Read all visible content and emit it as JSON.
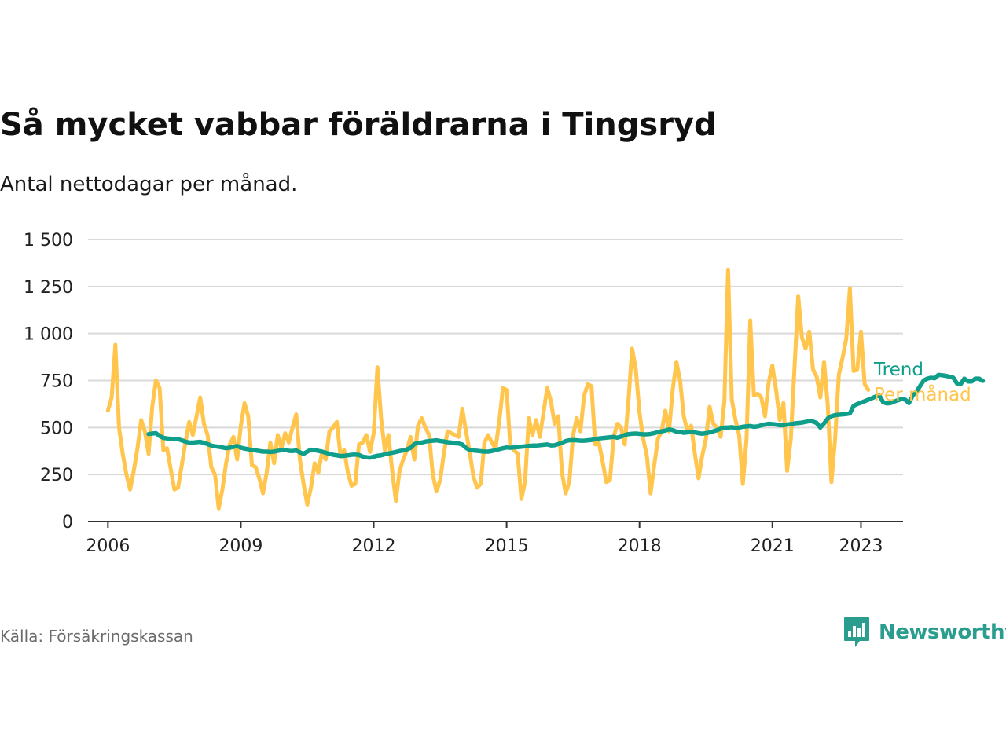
{
  "title": "Så mycket vabbar föräldrarna i Tingsryd",
  "subtitle": "Antal nettodagar per månad.",
  "source": "Källa: Försäkringskassan",
  "brand": {
    "name": "Newsworthy",
    "icon": "newsworthy-logo-icon",
    "color": "#2a9d8f"
  },
  "colors": {
    "per_month": "#ffc54d",
    "trend": "#0f9e8a",
    "grid": "#d9d9d9",
    "axis": "#333333"
  },
  "chart_data": {
    "type": "line",
    "title": "Så mycket vabbar föräldrarna i Tingsryd",
    "subtitle": "Antal nettodagar per månad.",
    "xlabel": "",
    "ylabel": "",
    "xlim": [
      2005.55,
      2023.95
    ],
    "ylim": [
      0,
      1500
    ],
    "x_ticks": [
      2006,
      2009,
      2012,
      2015,
      2018,
      2021,
      2023
    ],
    "x_tick_labels": [
      "2006",
      "2009",
      "2012",
      "2015",
      "2018",
      "2021",
      "2023"
    ],
    "y_ticks": [
      0,
      250,
      500,
      750,
      1000,
      1250,
      1500
    ],
    "y_tick_labels": [
      "0",
      "250",
      "500",
      "750",
      "1 000",
      "1 250",
      "1 500"
    ],
    "grid": true,
    "legend": "inline-right",
    "series": [
      {
        "name": "Per månad",
        "start": "2006-01",
        "values": [
          590,
          660,
          940,
          500,
          360,
          250,
          170,
          270,
          390,
          540,
          480,
          360,
          610,
          750,
          710,
          380,
          390,
          280,
          170,
          180,
          300,
          420,
          530,
          460,
          560,
          660,
          520,
          460,
          290,
          250,
          70,
          170,
          310,
          410,
          450,
          330,
          510,
          630,
          560,
          300,
          290,
          230,
          150,
          260,
          420,
          310,
          460,
          390,
          470,
          420,
          500,
          570,
          330,
          200,
          90,
          180,
          310,
          260,
          370,
          330,
          480,
          500,
          530,
          350,
          380,
          260,
          190,
          200,
          410,
          420,
          460,
          370,
          470,
          820,
          550,
          380,
          460,
          270,
          110,
          270,
          330,
          380,
          450,
          330,
          510,
          550,
          500,
          460,
          250,
          160,
          220,
          360,
          480,
          470,
          460,
          450,
          600,
          480,
          370,
          240,
          180,
          200,
          420,
          460,
          420,
          390,
          530,
          710,
          700,
          400,
          380,
          360,
          120,
          210,
          550,
          460,
          540,
          450,
          580,
          710,
          640,
          520,
          560,
          260,
          150,
          210,
          460,
          550,
          480,
          670,
          730,
          720,
          410,
          420,
          320,
          210,
          220,
          450,
          520,
          500,
          410,
          640,
          920,
          810,
          580,
          440,
          350,
          150,
          300,
          440,
          480,
          590,
          480,
          700,
          850,
          750,
          560,
          480,
          510,
          360,
          230,
          350,
          440,
          610,
          520,
          500,
          450,
          640,
          1340,
          650,
          540,
          460,
          200,
          440,
          1070,
          670,
          680,
          660,
          560,
          740,
          830,
          700,
          540,
          630,
          270,
          440,
          820,
          1200,
          980,
          920,
          1010,
          810,
          770,
          660,
          850,
          620,
          210,
          440,
          780,
          870,
          970,
          1240,
          800,
          810,
          1010,
          730,
          700
        ]
      },
      {
        "name": "Trend",
        "start": "2006-12",
        "values": [
          465,
          468,
          470,
          455,
          445,
          442,
          440,
          440,
          438,
          432,
          425,
          420,
          420,
          422,
          424,
          418,
          412,
          404,
          400,
          398,
          394,
          390,
          393,
          397,
          402,
          393,
          388,
          385,
          380,
          378,
          375,
          372,
          372,
          370,
          372,
          376,
          380,
          382,
          376,
          375,
          378,
          368,
          360,
          372,
          382,
          380,
          376,
          372,
          366,
          360,
          355,
          352,
          348,
          350,
          352,
          355,
          356,
          354,
          345,
          342,
          340,
          345,
          350,
          352,
          358,
          362,
          366,
          370,
          375,
          378,
          384,
          392,
          412,
          418,
          420,
          425,
          428,
          430,
          432,
          428,
          426,
          422,
          420,
          416,
          415,
          410,
          392,
          380,
          378,
          376,
          374,
          372,
          372,
          375,
          380,
          385,
          390,
          394,
          392,
          394,
          396,
          398,
          400,
          402,
          404,
          404,
          406,
          408,
          410,
          405,
          406,
          412,
          418,
          428,
          432,
          433,
          432,
          430,
          430,
          432,
          434,
          438,
          442,
          444,
          446,
          448,
          450,
          446,
          452,
          460,
          465,
          467,
          468,
          466,
          464,
          464,
          466,
          470,
          476,
          480,
          484,
          490,
          486,
          478,
          476,
          472,
          474,
          476,
          474,
          470,
          467,
          470,
          474,
          480,
          486,
          494,
          500,
          500,
          502,
          498,
          500,
          504,
          506,
          508,
          504,
          506,
          512,
          516,
          520,
          518,
          516,
          512,
          512,
          516,
          518,
          522,
          524,
          526,
          530,
          534,
          532,
          524,
          500,
          522,
          548,
          560,
          566,
          568,
          570,
          572,
          575,
          615,
          625,
          632,
          640,
          648,
          656,
          665,
          670,
          635,
          628,
          630,
          638,
          645,
          652,
          648,
          630,
          670,
          690,
          720,
          750,
          760,
          765,
          762,
          780,
          778,
          775,
          770,
          765,
          735,
          730,
          760,
          745,
          745,
          760,
          760,
          748
        ]
      }
    ]
  }
}
